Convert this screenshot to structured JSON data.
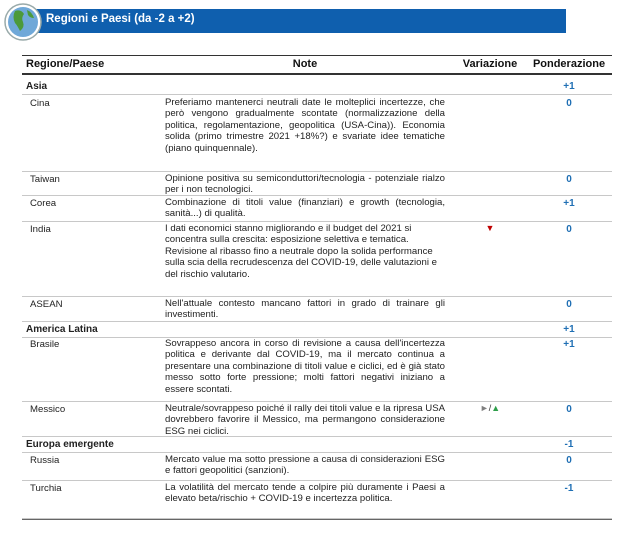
{
  "header": {
    "title": "Regioni e Paesi (da -2 a +2)"
  },
  "table": {
    "columns": [
      "Regione/Paese",
      "Note",
      "Variazione",
      "Ponderazione"
    ],
    "groups": [
      {
        "name": "Asia",
        "weight": "+1",
        "countries": [
          {
            "name": "Cina",
            "note": "Preferiamo mantenerci neutrali date le molteplici incertezze, che però vengono gradualmente scontate (normalizzazione della politica, regolamentazione, geopolitica (USA-Cina)). Economia solida (primo trimestre 2021 +18%?) e svariate idee tematiche (piano quinquennale).",
            "weight": "0"
          },
          {
            "name": "Taiwan",
            "note": "Opinione positiva su semiconduttori/tecnologia - potenziale rialzo per i non tecnologici.",
            "weight": "0"
          },
          {
            "name": "Corea",
            "note": "Combinazione di titoli value (finanziari) e growth (tecnologia, sanità...) di qualità.",
            "weight": "+1"
          },
          {
            "name": "India",
            "note": "I dati economici stanno migliorando e il budget del 2021 si concentra sulla crescita: esposizione selettiva e tematica. Revisione al ribasso fino a neutrale dopo la solida performance sulla scia della recrudescenza del COVID-19, delle valutazioni e del rischio valutario.",
            "variation": [
              {
                "symbol": "▼",
                "color": "#c00000"
              }
            ],
            "weight": "0"
          },
          {
            "name": "ASEAN",
            "note": "Nell'attuale contesto mancano fattori in grado di trainare gli investimenti.",
            "weight": "0"
          }
        ]
      },
      {
        "name": "America Latina",
        "weight": "+1",
        "countries": [
          {
            "name": "Brasile",
            "note": "Sovrappeso ancora in corso di revisione a causa dell'incertezza politica e derivante dal COVID-19, ma il mercato continua a presentare una combinazione di titoli value e ciclici, ed è già stato messo sotto forte pressione; molti fattori negativi iniziano a essere scontati.",
            "weight": "+1"
          },
          {
            "name": "Messico",
            "note": "Neutrale/sovrappeso poiché il rally dei titoli value e la ripresa USA dovrebbero favorire il Messico, ma permangono considerazione ESG nei ciclici.",
            "variation": [
              {
                "symbol": "►",
                "color": "#808080"
              },
              {
                "symbol": "/",
                "color": "#333333"
              },
              {
                "symbol": "▲",
                "color": "#2e9e4a"
              }
            ],
            "weight": "0"
          }
        ]
      },
      {
        "name": "Europa emergente",
        "weight": "-1",
        "countries": [
          {
            "name": "Russia",
            "note": "Mercato value ma sotto pressione a causa di considerazioni ESG e fattori geopolitici (sanzioni).",
            "weight": "0"
          },
          {
            "name": "Turchia",
            "note": "La volatilità del mercato tende a colpire più duramente i Paesi a elevato beta/rischio + COVID-19 e incertezza politica.",
            "weight": "-1"
          }
        ]
      }
    ]
  }
}
